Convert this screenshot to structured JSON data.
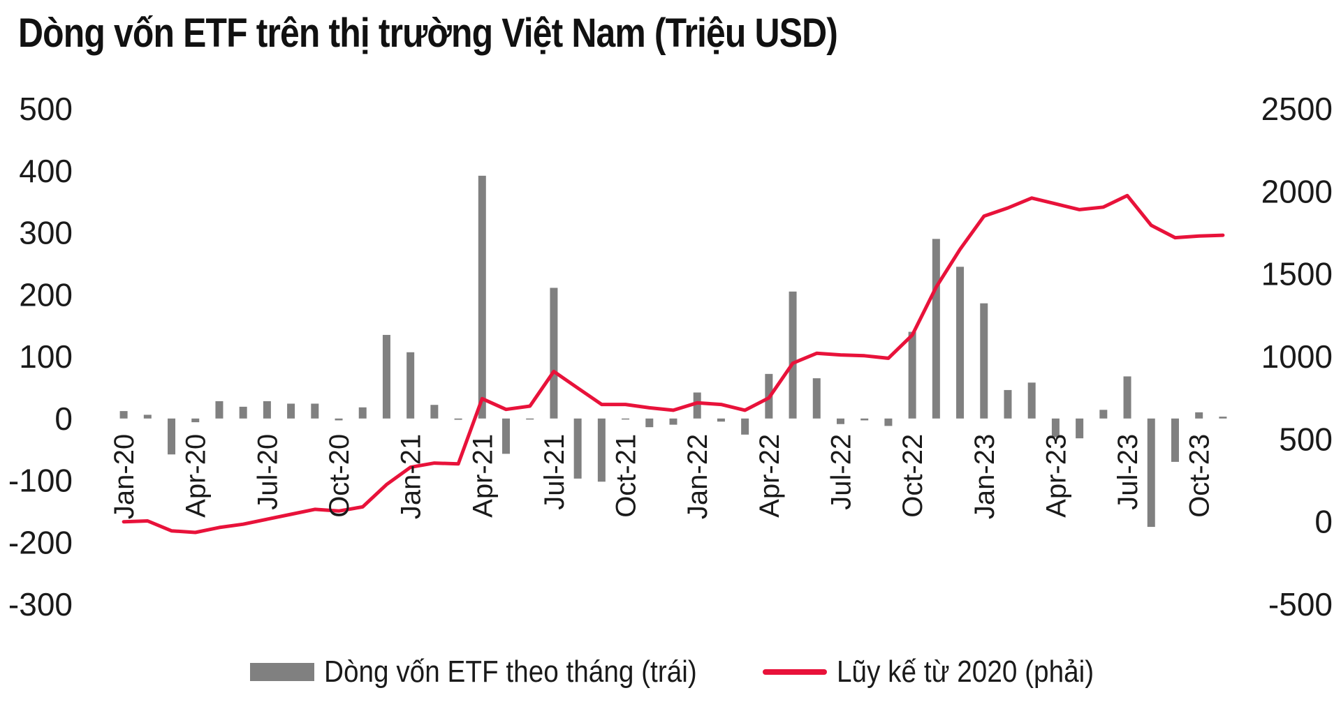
{
  "chart_data": {
    "type": "bar",
    "title": "Dòng vốn ETF trên thị trường Việt Nam (Triệu USD)",
    "x": [
      "Jan-20",
      "Feb-20",
      "Mar-20",
      "Apr-20",
      "May-20",
      "Jun-20",
      "Jul-20",
      "Aug-20",
      "Sep-20",
      "Oct-20",
      "Nov-20",
      "Dec-20",
      "Jan-21",
      "Feb-21",
      "Mar-21",
      "Apr-21",
      "May-21",
      "Jun-21",
      "Jul-21",
      "Aug-21",
      "Sep-21",
      "Oct-21",
      "Nov-21",
      "Dec-21",
      "Jan-22",
      "Feb-22",
      "Mar-22",
      "Apr-22",
      "May-22",
      "Jun-22",
      "Jul-22",
      "Aug-22",
      "Sep-22",
      "Oct-22",
      "Nov-22",
      "Dec-22",
      "Jan-23",
      "Feb-23",
      "Mar-23",
      "Apr-23",
      "May-23",
      "Jun-23",
      "Jul-23",
      "Aug-23",
      "Sep-23",
      "Oct-23",
      "Nov-23"
    ],
    "x_tick_labels": [
      "Jan-20",
      "Apr-20",
      "Jul-20",
      "Oct-20",
      "Jan-21",
      "Apr-21",
      "Jul-21",
      "Oct-21",
      "Jan-22",
      "Apr-22",
      "Jul-22",
      "Oct-22",
      "Jan-23",
      "Apr-23",
      "Jul-23",
      "Oct-23"
    ],
    "series": [
      {
        "name": "Dòng vốn ETF theo tháng (trái)",
        "type": "bar",
        "axis": "left",
        "color": "#808080",
        "values": [
          12,
          6,
          -58,
          -6,
          28,
          19,
          28,
          24,
          24,
          -3,
          18,
          135,
          107,
          22,
          -2,
          392,
          -57,
          0,
          211,
          -97,
          -102,
          -1,
          -14,
          -10,
          42,
          -5,
          -26,
          72,
          205,
          65,
          -9,
          -3,
          -12,
          140,
          290,
          245,
          186,
          46,
          58,
          -30,
          -32,
          14,
          68,
          -175,
          -70,
          10,
          3
        ]
      },
      {
        "name": "Lũy kế từ 2020 (phải)",
        "type": "line",
        "axis": "right",
        "color": "#e8123a",
        "values": [
          0,
          5,
          -55,
          -65,
          -35,
          -15,
          15,
          45,
          75,
          65,
          90,
          225,
          330,
          355,
          350,
          745,
          680,
          700,
          910,
          810,
          710,
          710,
          690,
          675,
          720,
          710,
          675,
          750,
          960,
          1020,
          1010,
          1005,
          990,
          1130,
          1420,
          1650,
          1850,
          1900,
          1960,
          1925,
          1890,
          1905,
          1975,
          1795,
          1720,
          1730,
          1735
        ]
      }
    ],
    "y_left": {
      "ylim": [
        -300,
        500
      ],
      "ticks": [
        "500",
        "400",
        "300",
        "200",
        "100",
        "0",
        "-100",
        "-200",
        "-300"
      ]
    },
    "y_right": {
      "ylim": [
        -500,
        2500
      ],
      "ticks": [
        "2500",
        "2000",
        "1500",
        "1000",
        "500",
        "0",
        "-500"
      ]
    },
    "grid": false,
    "legend_position": "bottom"
  }
}
